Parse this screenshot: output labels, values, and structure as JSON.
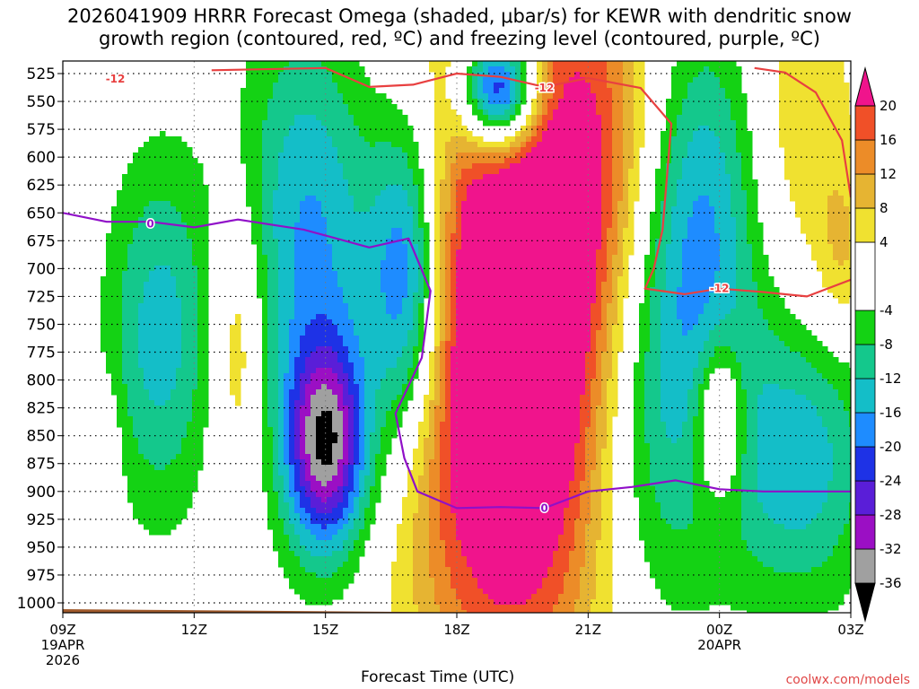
{
  "title": {
    "line1": "2026041909 HRRR Forecast Omega (shaded, μbar/s) for KEWR with dendritic snow",
    "line2": "growth region (contoured, red, ºC) and freezing level (contoured, purple, ºC)"
  },
  "xlabel": "Forecast Time (UTC)",
  "site_credit": "coolwx.com/models",
  "colors": {
    "dgz_contour": "#e84040",
    "freezing_contour": "#9010c8",
    "ground": "#a05a2c"
  },
  "chart_data": {
    "type": "heatmap",
    "title": "2026041909 HRRR Forecast Omega (shaded, μbar/s) for KEWR with dendritic snow growth region (contoured, red, ºC) and freezing level (contoured, purple, ºC)",
    "xlabel": "Forecast Time (UTC)",
    "ylabel": "",
    "x_range_hours": [
      9,
      27
    ],
    "y_range_mb": [
      1000,
      525
    ],
    "y_scale": "inverted pressure",
    "grid": true,
    "x_ticks": [
      {
        "hour": 9,
        "label": "09Z",
        "sub1": "19APR",
        "sub2": "2026"
      },
      {
        "hour": 12,
        "label": "12Z",
        "sub1": "",
        "sub2": ""
      },
      {
        "hour": 15,
        "label": "15Z",
        "sub1": "",
        "sub2": ""
      },
      {
        "hour": 18,
        "label": "18Z",
        "sub1": "",
        "sub2": ""
      },
      {
        "hour": 21,
        "label": "21Z",
        "sub1": "",
        "sub2": ""
      },
      {
        "hour": 24,
        "label": "00Z",
        "sub1": "20APR",
        "sub2": ""
      },
      {
        "hour": 27,
        "label": "03Z",
        "sub1": "",
        "sub2": ""
      }
    ],
    "y_ticks": [
      525,
      550,
      575,
      600,
      625,
      650,
      675,
      700,
      725,
      750,
      775,
      800,
      825,
      850,
      875,
      900,
      925,
      950,
      975,
      1000
    ],
    "colorbar": {
      "min": -36,
      "max": 24,
      "labels": [
        20,
        16,
        12,
        8,
        4,
        -4,
        -8,
        -12,
        -16,
        -20,
        -24,
        -28,
        -32,
        -36
      ],
      "bins": [
        {
          "from": -40,
          "to": -36,
          "color": "#000000"
        },
        {
          "from": -36,
          "to": -32,
          "color": "#a0a0a0"
        },
        {
          "from": -32,
          "to": -28,
          "color": "#9b0fc4"
        },
        {
          "from": -28,
          "to": -24,
          "color": "#5a1ed8"
        },
        {
          "from": -24,
          "to": -20,
          "color": "#1e32e6"
        },
        {
          "from": -20,
          "to": -16,
          "color": "#1e8cff"
        },
        {
          "from": -16,
          "to": -12,
          "color": "#14bec8"
        },
        {
          "from": -12,
          "to": -8,
          "color": "#14c88c"
        },
        {
          "from": -8,
          "to": -4,
          "color": "#14d214"
        },
        {
          "from": -4,
          "to": 4,
          "color": "#ffffff"
        },
        {
          "from": 4,
          "to": 8,
          "color": "#f0e130"
        },
        {
          "from": 8,
          "to": 12,
          "color": "#e6b432"
        },
        {
          "from": 12,
          "to": 16,
          "color": "#ec8c28"
        },
        {
          "from": 16,
          "to": 20,
          "color": "#f05028"
        },
        {
          "from": 20,
          "to": 24,
          "color": "#f0148c"
        }
      ]
    },
    "blobs": [
      {
        "x": 11.2,
        "y": 760,
        "rx": 1.2,
        "ry": 160,
        "peak": -14
      },
      {
        "x": 14.6,
        "y": 640,
        "rx": 1.6,
        "ry": 180,
        "peak": -14
      },
      {
        "x": 15.0,
        "y": 860,
        "rx": 0.9,
        "ry": 90,
        "peak": -30
      },
      {
        "x": 15.2,
        "y": 800,
        "rx": 1.5,
        "ry": 200,
        "peak": -8
      },
      {
        "x": 16.9,
        "y": 710,
        "rx": 0.9,
        "ry": 150,
        "peak": -26
      },
      {
        "x": 19.0,
        "y": 540,
        "rx": 0.9,
        "ry": 55,
        "peak": -40
      },
      {
        "x": 19.3,
        "y": 790,
        "rx": 2.3,
        "ry": 280,
        "peak": 28
      },
      {
        "x": 19.0,
        "y": 740,
        "rx": 3.2,
        "ry": 350,
        "peak": 8
      },
      {
        "x": 21.2,
        "y": 610,
        "rx": 1.6,
        "ry": 200,
        "peak": 14
      },
      {
        "x": 22.4,
        "y": 790,
        "rx": 1.7,
        "ry": 220,
        "peak": -17
      },
      {
        "x": 23.8,
        "y": 640,
        "rx": 1.4,
        "ry": 180,
        "peak": -14
      },
      {
        "x": 24.0,
        "y": 835,
        "rx": 0.55,
        "ry": 70,
        "peak": 18
      },
      {
        "x": 25.8,
        "y": 870,
        "rx": 1.7,
        "ry": 130,
        "peak": -15
      },
      {
        "x": 25.7,
        "y": 580,
        "rx": 1.5,
        "ry": 170,
        "peak": 8
      },
      {
        "x": 13.0,
        "y": 760,
        "rx": 0.6,
        "ry": 130,
        "peak": 10
      },
      {
        "x": 9.9,
        "y": 860,
        "rx": 0.4,
        "ry": 55,
        "peak": 6
      },
      {
        "x": 26.8,
        "y": 690,
        "rx": 0.6,
        "ry": 80,
        "peak": 7
      }
    ],
    "series": [
      {
        "name": "-12",
        "contour": "dendritic",
        "label_points": [
          {
            "x": 10.2,
            "y": 530
          },
          {
            "x": 20.0,
            "y": 538
          },
          {
            "x": 24.0,
            "y": 718
          }
        ],
        "segments": [
          [
            [
              12.4,
              522
            ],
            [
              15.0,
              520
            ],
            [
              16.0,
              537
            ],
            [
              17.0,
              535
            ],
            [
              18.0,
              525
            ],
            [
              19.0,
              528
            ],
            [
              20.0,
              537
            ],
            [
              21.0,
              529
            ],
            [
              22.2,
              538
            ],
            [
              22.9,
              570
            ],
            [
              22.7,
              665
            ],
            [
              22.5,
              700
            ],
            [
              22.3,
              718
            ],
            [
              23.2,
              723
            ],
            [
              24.0,
              718
            ],
            [
              25.0,
              721
            ],
            [
              26.0,
              725
            ],
            [
              27.0,
              710
            ]
          ],
          [
            [
              24.8,
              520
            ],
            [
              25.5,
              524
            ],
            [
              26.2,
              542
            ],
            [
              26.8,
              585
            ],
            [
              27.0,
              636
            ]
          ]
        ]
      },
      {
        "name": "0",
        "contour": "freezing",
        "label_points": [
          {
            "x": 11.0,
            "y": 660
          },
          {
            "x": 20.0,
            "y": 915
          }
        ],
        "segments": [
          [
            [
              9.0,
              650
            ],
            [
              10.0,
              658
            ],
            [
              11.0,
              658
            ],
            [
              12.0,
              663
            ],
            [
              13.0,
              656
            ],
            [
              14.5,
              665
            ],
            [
              16.0,
              681
            ],
            [
              16.9,
              673
            ],
            [
              17.4,
              720
            ],
            [
              17.2,
              780
            ],
            [
              16.6,
              830
            ],
            [
              16.8,
              870
            ],
            [
              17.1,
              900
            ],
            [
              18.0,
              915
            ],
            [
              19.0,
              914
            ],
            [
              20.0,
              915
            ],
            [
              21.0,
              900
            ],
            [
              22.0,
              896
            ],
            [
              23.0,
              890
            ],
            [
              24.0,
              898
            ],
            [
              25.0,
              900
            ],
            [
              26.0,
              900
            ],
            [
              27.0,
              900
            ]
          ]
        ]
      }
    ]
  }
}
